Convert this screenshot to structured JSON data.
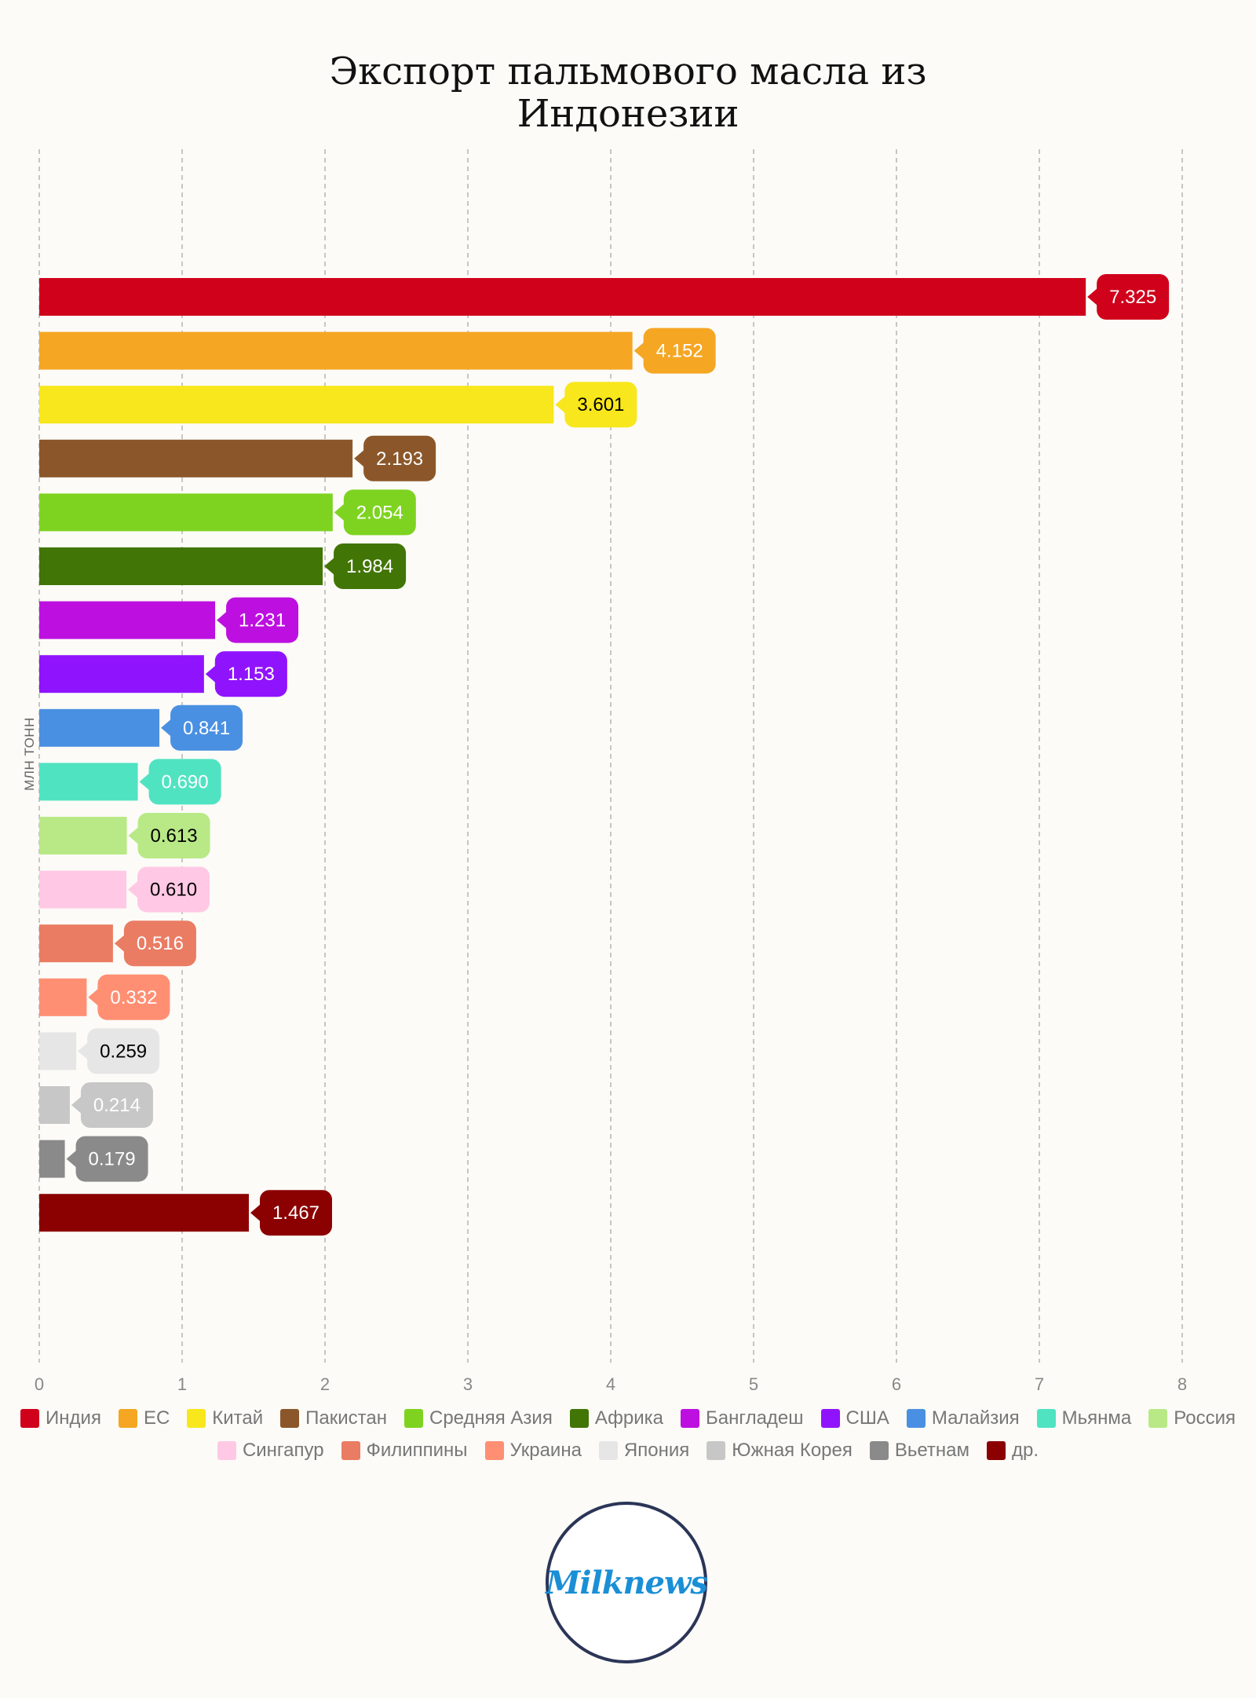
{
  "title_lines": [
    "Экспорт пальмового масла из",
    "Индонезии"
  ],
  "chart_data": {
    "type": "bar",
    "orientation": "horizontal",
    "title": "Экспорт пальмового масла из Индонезии",
    "ylabel": "МЛН ТОНН",
    "xlim": [
      0,
      8
    ],
    "x_ticks": [
      "0",
      "1",
      "2",
      "3",
      "4",
      "5",
      "6",
      "7",
      "8"
    ],
    "grid": "vertical dashed",
    "legend_position": "bottom",
    "categories": [
      "Индия",
      "ЕС",
      "Китай",
      "Пакистан",
      "Средняя Азия",
      "Африка",
      "Бангладеш",
      "США",
      "Малайзия",
      "Мьянма",
      "Россия",
      "Сингапур",
      "Филиппины",
      "Украина",
      "Япония",
      "Южная Корея",
      "Вьетнам",
      "др."
    ],
    "values": [
      7.325,
      4.152,
      3.601,
      2.193,
      2.054,
      1.984,
      1.231,
      1.153,
      0.841,
      0.69,
      0.613,
      0.61,
      0.516,
      0.332,
      0.259,
      0.214,
      0.179,
      1.467
    ],
    "value_labels": [
      "7.325",
      "4.152",
      "3.601",
      "2.193",
      "2.054",
      "1.984",
      "1.231",
      "1.153",
      "0.841",
      "0.690",
      "0.613",
      "0.610",
      "0.516",
      "0.332",
      "0.259",
      "0.214",
      "0.179",
      "1.467"
    ],
    "colors": [
      "#d0021b",
      "#f5a623",
      "#f8e71c",
      "#8b572a",
      "#7ed321",
      "#417505",
      "#bd10e0",
      "#9013fe",
      "#4a90e2",
      "#50e3c2",
      "#b8e986",
      "#ffc9e5",
      "#ea7c63",
      "#ff8f73",
      "#e6e6e6",
      "#c7c7c7",
      "#8a8a8a",
      "#8b0000"
    ],
    "label_text_colors": [
      "#ffffff",
      "#ffffff",
      "#000000",
      "#ffffff",
      "#ffffff",
      "#ffffff",
      "#ffffff",
      "#ffffff",
      "#ffffff",
      "#ffffff",
      "#000000",
      "#000000",
      "#ffffff",
      "#ffffff",
      "#000000",
      "#ffffff",
      "#ffffff",
      "#ffffff"
    ]
  },
  "legend_rows": [
    [
      "Индия",
      "ЕС",
      "Китай",
      "Пакистан",
      "Средняя Азия",
      "Африка",
      "Бангладеш",
      "США",
      "Малайзия",
      "Мьянма",
      "Россия"
    ],
    [
      "Сингапур",
      "Филиппины",
      "Украина",
      "Япония",
      "Южная Корея",
      "Вьетнам",
      "др."
    ]
  ],
  "logo_text": "Milknews"
}
